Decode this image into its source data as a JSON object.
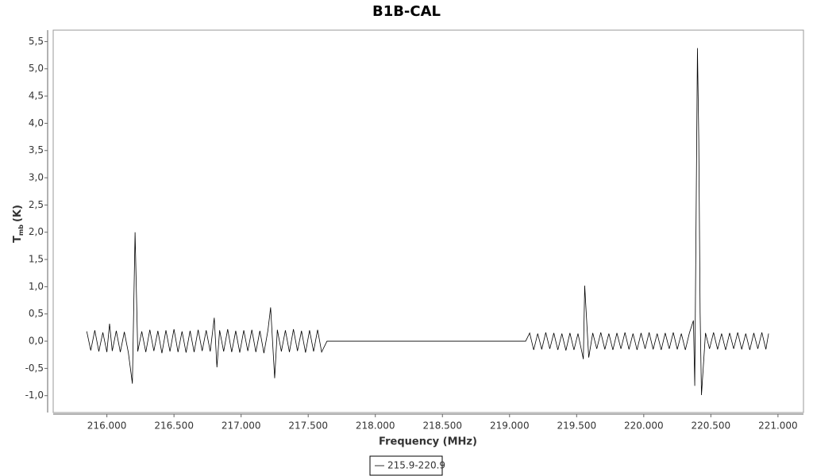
{
  "chart_data": {
    "type": "line",
    "title": "B1B-CAL",
    "xlabel": "Frequency (MHz)",
    "ylabel": {
      "main": "T",
      "sub": "mb",
      "unit": "(K)"
    },
    "x": [
      215.85,
      215.88,
      215.91,
      215.94,
      215.97,
      216.0,
      216.02,
      216.04,
      216.07,
      216.1,
      216.13,
      216.16,
      216.19,
      216.21,
      216.23,
      216.26,
      216.29,
      216.32,
      216.35,
      216.38,
      216.41,
      216.44,
      216.47,
      216.5,
      216.53,
      216.56,
      216.59,
      216.62,
      216.65,
      216.68,
      216.71,
      216.74,
      216.77,
      216.8,
      216.82,
      216.84,
      216.87,
      216.9,
      216.93,
      216.96,
      216.99,
      217.02,
      217.05,
      217.08,
      217.11,
      217.14,
      217.17,
      217.2,
      217.22,
      217.25,
      217.27,
      217.3,
      217.33,
      217.36,
      217.39,
      217.42,
      217.45,
      217.48,
      217.51,
      217.54,
      217.57,
      217.6,
      217.64,
      219.12,
      219.15,
      219.18,
      219.21,
      219.24,
      219.27,
      219.3,
      219.33,
      219.36,
      219.39,
      219.42,
      219.45,
      219.48,
      219.51,
      219.55,
      219.56,
      219.59,
      219.62,
      219.65,
      219.68,
      219.71,
      219.74,
      219.77,
      219.8,
      219.83,
      219.86,
      219.89,
      219.92,
      219.95,
      219.98,
      220.01,
      220.04,
      220.07,
      220.1,
      220.13,
      220.16,
      220.19,
      220.22,
      220.25,
      220.28,
      220.31,
      220.34,
      220.37,
      220.38,
      220.4,
      220.41,
      220.42,
      220.43,
      220.46,
      220.49,
      220.52,
      220.55,
      220.58,
      220.61,
      220.64,
      220.67,
      220.7,
      220.73,
      220.76,
      220.79,
      220.82,
      220.85,
      220.88,
      220.91,
      220.93
    ],
    "series": [
      {
        "name": "215.9-220.9",
        "color": "#000000",
        "values": [
          0.18,
          -0.17,
          0.2,
          -0.19,
          0.16,
          -0.2,
          0.32,
          -0.18,
          0.19,
          -0.2,
          0.17,
          -0.21,
          -0.78,
          2.0,
          -0.19,
          0.18,
          -0.2,
          0.21,
          -0.18,
          0.19,
          -0.22,
          0.2,
          -0.19,
          0.22,
          -0.2,
          0.18,
          -0.21,
          0.19,
          -0.2,
          0.21,
          -0.18,
          0.2,
          -0.19,
          0.43,
          -0.48,
          0.2,
          -0.19,
          0.22,
          -0.2,
          0.19,
          -0.21,
          0.2,
          -0.18,
          0.21,
          -0.2,
          0.19,
          -0.22,
          0.2,
          0.62,
          -0.68,
          0.21,
          -0.19,
          0.2,
          -0.2,
          0.22,
          -0.18,
          0.19,
          -0.21,
          0.2,
          -0.19,
          0.21,
          -0.2,
          0.0,
          0.0,
          0.15,
          -0.16,
          0.14,
          -0.15,
          0.16,
          -0.14,
          0.15,
          -0.16,
          0.14,
          -0.17,
          0.15,
          -0.16,
          0.14,
          -0.33,
          1.02,
          -0.3,
          0.15,
          -0.14,
          0.16,
          -0.15,
          0.14,
          -0.16,
          0.15,
          -0.14,
          0.16,
          -0.15,
          0.14,
          -0.16,
          0.15,
          -0.14,
          0.16,
          -0.15,
          0.14,
          -0.16,
          0.15,
          -0.14,
          0.16,
          -0.15,
          0.14,
          -0.16,
          0.15,
          0.38,
          -0.82,
          5.38,
          3.7,
          0.52,
          -0.99,
          0.15,
          -0.14,
          0.16,
          -0.15,
          0.14,
          -0.16,
          0.15,
          -0.14,
          0.16,
          -0.15,
          0.14,
          -0.16,
          0.15,
          -0.14,
          0.16,
          -0.15,
          0.14
        ]
      }
    ],
    "xlim": [
      215.6,
      221.19
    ],
    "xticks": [
      {
        "value": 216,
        "label": "216.000"
      },
      {
        "value": 216.5,
        "label": "216.500"
      },
      {
        "value": 217,
        "label": "217.000"
      },
      {
        "value": 217.5,
        "label": "217.500"
      },
      {
        "value": 218,
        "label": "218.000"
      },
      {
        "value": 218.5,
        "label": "218.500"
      },
      {
        "value": 219,
        "label": "219.000"
      },
      {
        "value": 219.5,
        "label": "219.500"
      },
      {
        "value": 220,
        "label": "220.000"
      },
      {
        "value": 220.5,
        "label": "220.500"
      },
      {
        "value": 221,
        "label": "221.000"
      }
    ],
    "ylim": [
      -1.31,
      5.71
    ],
    "yticks": [
      {
        "value": -1,
        "label": "-1,0"
      },
      {
        "value": -0.5,
        "label": "-0,5"
      },
      {
        "value": 0,
        "label": "0,0"
      },
      {
        "value": 0.5,
        "label": "0,5"
      },
      {
        "value": 1,
        "label": "1,0"
      },
      {
        "value": 1.5,
        "label": "1,5"
      },
      {
        "value": 2,
        "label": "2,0"
      },
      {
        "value": 2.5,
        "label": "2,5"
      },
      {
        "value": 3,
        "label": "3,0"
      },
      {
        "value": 3.5,
        "label": "3,5"
      },
      {
        "value": 4,
        "label": "4,0"
      },
      {
        "value": 4.5,
        "label": "4,5"
      },
      {
        "value": 5,
        "label": "5,0"
      },
      {
        "value": 5.5,
        "label": "5,5"
      }
    ],
    "grid": false
  }
}
